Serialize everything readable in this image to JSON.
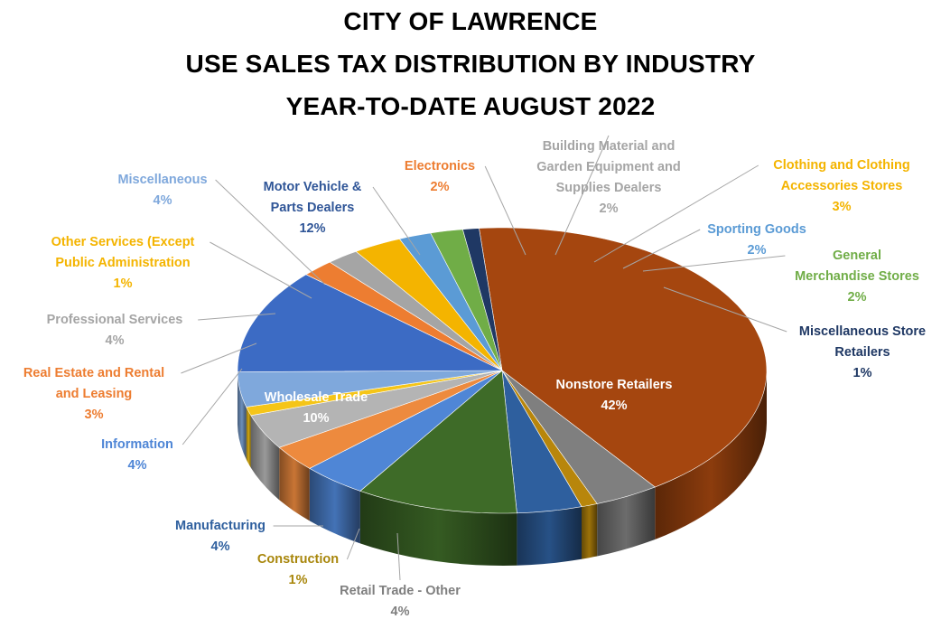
{
  "chart_data": {
    "type": "pie",
    "title_lines": [
      "CITY OF LAWRENCE",
      "USE SALES TAX DISTRIBUTION BY INDUSTRY",
      "YEAR-TO-DATE AUGUST 2022"
    ],
    "slices": [
      {
        "label_lines": [
          "Nonstore Retailers"
        ],
        "pct_text": "42%",
        "value": 42,
        "color": "#A5460F"
      },
      {
        "label_lines": [
          "Retail Trade - Other"
        ],
        "pct_text": "4%",
        "value": 4,
        "color": "#7F7F7F"
      },
      {
        "label_lines": [
          "Construction"
        ],
        "pct_text": "1%",
        "value": 1,
        "color": "#B8860B"
      },
      {
        "label_lines": [
          "Manufacturing"
        ],
        "pct_text": "4%",
        "value": 4,
        "color": "#2E5F9E"
      },
      {
        "label_lines": [
          "Wholesale Trade"
        ],
        "pct_text": "10%",
        "value": 10,
        "color": "#3E6B28"
      },
      {
        "label_lines": [
          "Information"
        ],
        "pct_text": "4%",
        "value": 4,
        "color": "#4F86D6"
      },
      {
        "label_lines": [
          "Real Estate and Rental",
          "and Leasing"
        ],
        "pct_text": "3%",
        "value": 3,
        "color": "#ED8A3E"
      },
      {
        "label_lines": [
          "Professional Services"
        ],
        "pct_text": "4%",
        "value": 4,
        "color": "#B4B4B4"
      },
      {
        "label_lines": [
          "Other Services (Except",
          "Public Administration"
        ],
        "pct_text": "1%",
        "value": 1,
        "color": "#F5C518"
      },
      {
        "label_lines": [
          "Miscellaneous"
        ],
        "pct_text": "4%",
        "value": 4,
        "color": "#7FA8DC"
      },
      {
        "label_lines": [
          "Motor Vehicle &",
          "Parts Dealers"
        ],
        "pct_text": "12%",
        "value": 12,
        "color": "#3C6BC4"
      },
      {
        "label_lines": [
          "Electronics"
        ],
        "pct_text": "2%",
        "value": 2,
        "color": "#ED7D31"
      },
      {
        "label_lines": [
          "Building Material and",
          "Garden Equipment and",
          "Supplies Dealers"
        ],
        "pct_text": "2%",
        "value": 2,
        "color": "#A5A5A5"
      },
      {
        "label_lines": [
          "Clothing and Clothing",
          "Accessories Stores"
        ],
        "pct_text": "3%",
        "value": 3,
        "color": "#F4B400"
      },
      {
        "label_lines": [
          "Sporting Goods"
        ],
        "pct_text": "2%",
        "value": 2,
        "color": "#5B9BD5"
      },
      {
        "label_lines": [
          "General",
          "Merchandise Stores"
        ],
        "pct_text": "2%",
        "value": 2,
        "color": "#70AD47"
      },
      {
        "label_lines": [
          "Miscellaneous Store",
          "Retailers"
        ],
        "pct_text": "1%",
        "value": 1,
        "color": "#1F3864"
      }
    ],
    "label_colors": {
      "Nonstore Retailers": "#FFFFFF",
      "Wholesale Trade": "#FFFFFF",
      "Retail Trade - Other": "#7F7F7F",
      "Construction": "#A8860B",
      "Manufacturing": "#2E5F9E",
      "Information": "#4F86D6",
      "Real Estate and Rental": "#ED7D31",
      "Professional Services": "#A5A5A5",
      "Other Services (Except": "#F4B400",
      "Miscellaneous": "#7FA8DC",
      "Motor Vehicle &": "#2F5597",
      "Electronics": "#ED7D31",
      "Building Material and": "#A5A5A5",
      "Clothing and Clothing": "#F4B400",
      "Sporting Goods": "#5B9BD5",
      "General": "#70AD47",
      "Miscellaneous Store": "#1F3864"
    },
    "three_d": true,
    "legend": "none"
  }
}
